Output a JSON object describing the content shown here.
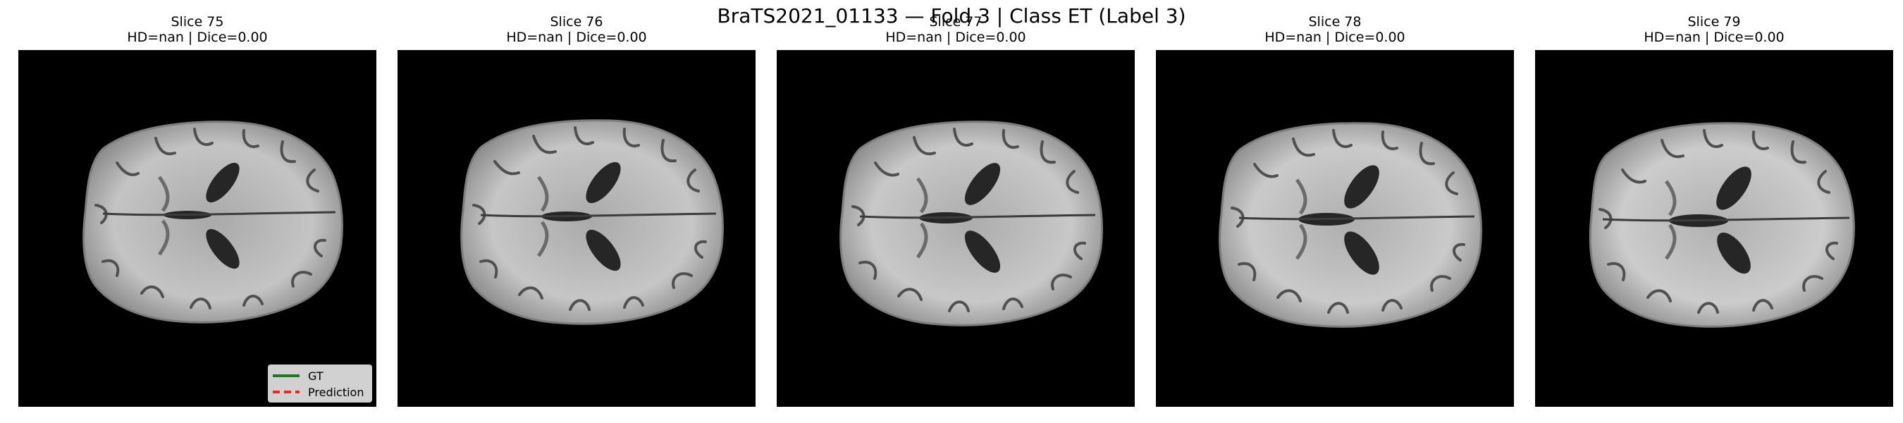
{
  "figure": {
    "title": "BraTS2021_01133 — Fold 3 | Class ET (Label 3)"
  },
  "panels": [
    {
      "slice": "Slice 75",
      "metrics": "HD=nan | Dice=0.00"
    },
    {
      "slice": "Slice 76",
      "metrics": "HD=nan | Dice=0.00"
    },
    {
      "slice": "Slice 77",
      "metrics": "HD=nan | Dice=0.00"
    },
    {
      "slice": "Slice 78",
      "metrics": "HD=nan | Dice=0.00"
    },
    {
      "slice": "Slice 79",
      "metrics": "HD=nan | Dice=0.00"
    }
  ],
  "legend": {
    "gt_label": "GT",
    "pred_label": "Prediction",
    "gt_color": "#1f7a1f",
    "pred_color": "#ff2020"
  },
  "colors": {
    "background": "#000000",
    "brain_tissue": "#bdbdbd"
  }
}
